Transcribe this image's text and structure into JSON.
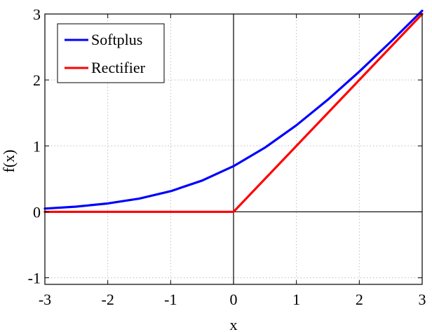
{
  "chart_data": {
    "type": "line",
    "title": "",
    "xlabel": "x",
    "ylabel": "f(x)",
    "xlim": [
      -3,
      3
    ],
    "ylim": [
      -1.1,
      3
    ],
    "xticks": [
      -3,
      -2,
      -1,
      0,
      1,
      2,
      3
    ],
    "yticks": [
      -1,
      0,
      1,
      2,
      3
    ],
    "xtick_labels": [
      "-3",
      "-2",
      "-1",
      "0",
      "1",
      "2",
      "3"
    ],
    "ytick_labels": [
      "-1",
      "0",
      "1",
      "2",
      "3"
    ],
    "grid": true,
    "legend_position": "top-left",
    "series": [
      {
        "name": "Softplus",
        "color": "#0000ff",
        "x": [
          -3,
          -2.5,
          -2,
          -1.5,
          -1,
          -0.5,
          0,
          0.5,
          1,
          1.5,
          2,
          2.5,
          3
        ],
        "y": [
          0.049,
          0.079,
          0.127,
          0.201,
          0.313,
          0.474,
          0.693,
          0.974,
          1.313,
          1.701,
          2.127,
          2.579,
          3.049
        ]
      },
      {
        "name": "Rectifier",
        "color": "#ff0000",
        "x": [
          -3,
          0,
          3
        ],
        "y": [
          0,
          0,
          3
        ]
      }
    ]
  }
}
